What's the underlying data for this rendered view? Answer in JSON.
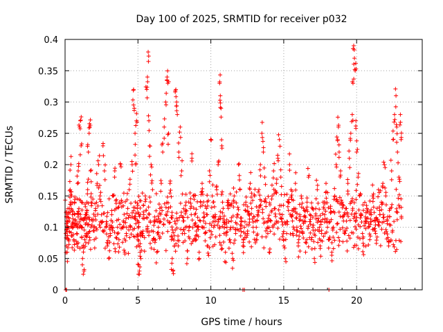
{
  "chart_data": {
    "type": "scatter",
    "title": "Day 100 of 2025, SRMTID for receiver p032",
    "xlabel": "GPS time / hours",
    "ylabel": "SRMTID / TECUs",
    "xlim": [
      0,
      24.5
    ],
    "ylim": [
      0,
      0.4
    ],
    "xticks": [
      0,
      5,
      10,
      15,
      20
    ],
    "yticks": [
      0,
      0.05,
      0.1,
      0.15,
      0.2,
      0.25,
      0.3,
      0.35,
      0.4
    ],
    "ytick_labels": [
      "0",
      "0.05",
      "0.1",
      "0.15",
      "0.2",
      "0.25",
      "0.3",
      "0.35",
      "0.4"
    ],
    "xtick_labels": [
      "0",
      "5",
      "10",
      "15",
      "20"
    ],
    "grid": true,
    "marker": "+",
    "color": "#ff0000",
    "series": [
      {
        "name": "SRMTID",
        "points": [
          [
            0.05,
            0.09
          ],
          [
            0.1,
            0.07
          ],
          [
            0.12,
            0.11
          ],
          [
            0.15,
            0.06
          ],
          [
            0.2,
            0.1
          ],
          [
            0.25,
            0.08
          ],
          [
            0.3,
            0.13
          ],
          [
            0.35,
            0.16
          ],
          [
            0.4,
            0.2
          ],
          [
            0.45,
            0.15
          ],
          [
            0.5,
            0.12
          ],
          [
            0.55,
            0.1
          ],
          [
            0.6,
            0.08
          ],
          [
            0.65,
            0.14
          ],
          [
            0.7,
            0.11
          ],
          [
            0.8,
            0.09
          ],
          [
            0.85,
            0.17
          ],
          [
            0.9,
            0.19
          ],
          [
            0.95,
            0.13
          ],
          [
            1.0,
            0.26
          ],
          [
            1.05,
            0.27
          ],
          [
            1.1,
            0.23
          ],
          [
            1.15,
            0.1
          ],
          [
            1.2,
            0.05
          ],
          [
            1.3,
            0.03
          ],
          [
            1.35,
            0.08
          ],
          [
            1.4,
            0.12
          ],
          [
            1.45,
            0.09
          ],
          [
            1.5,
            0.14
          ],
          [
            1.55,
            0.16
          ],
          [
            1.6,
            0.22
          ],
          [
            1.65,
            0.25
          ],
          [
            1.7,
            0.26
          ],
          [
            1.75,
            0.19
          ],
          [
            1.8,
            0.14
          ],
          [
            1.9,
            0.11
          ],
          [
            2.0,
            0.08
          ],
          [
            2.1,
            0.13
          ],
          [
            2.2,
            0.17
          ],
          [
            2.3,
            0.2
          ],
          [
            2.4,
            0.15
          ],
          [
            2.5,
            0.12
          ],
          [
            2.6,
            0.23
          ],
          [
            2.7,
            0.19
          ],
          [
            2.8,
            0.1
          ],
          [
            2.9,
            0.07
          ],
          [
            3.0,
            0.05
          ],
          [
            3.1,
            0.09
          ],
          [
            3.2,
            0.12
          ],
          [
            3.3,
            0.15
          ],
          [
            3.4,
            0.18
          ],
          [
            3.5,
            0.13
          ],
          [
            3.6,
            0.1
          ],
          [
            3.7,
            0.08
          ],
          [
            3.8,
            0.2
          ],
          [
            3.9,
            0.14
          ],
          [
            4.0,
            0.11
          ],
          [
            4.1,
            0.06
          ],
          [
            4.2,
            0.09
          ],
          [
            4.3,
            0.13
          ],
          [
            4.4,
            0.16
          ],
          [
            4.5,
            0.1
          ],
          [
            4.6,
            0.2
          ],
          [
            4.7,
            0.32
          ],
          [
            4.75,
            0.29
          ],
          [
            4.8,
            0.25
          ],
          [
            4.85,
            0.2
          ],
          [
            4.9,
            0.27
          ],
          [
            4.95,
            0.13
          ],
          [
            5.0,
            0.08
          ],
          [
            5.05,
            0.04
          ],
          [
            5.1,
            0.03
          ],
          [
            5.15,
            0.06
          ],
          [
            5.2,
            0.05
          ],
          [
            5.3,
            0.09
          ],
          [
            5.4,
            0.12
          ],
          [
            5.5,
            0.15
          ],
          [
            5.6,
            0.32
          ],
          [
            5.65,
            0.34
          ],
          [
            5.7,
            0.38
          ],
          [
            5.75,
            0.27
          ],
          [
            5.8,
            0.23
          ],
          [
            5.9,
            0.2
          ],
          [
            6.0,
            0.16
          ],
          [
            6.1,
            0.11
          ],
          [
            6.2,
            0.08
          ],
          [
            6.3,
            0.06
          ],
          [
            6.4,
            0.1
          ],
          [
            6.5,
            0.13
          ],
          [
            6.6,
            0.17
          ],
          [
            6.7,
            0.22
          ],
          [
            6.8,
            0.26
          ],
          [
            6.9,
            0.3
          ],
          [
            7.0,
            0.34
          ],
          [
            7.05,
            0.33
          ],
          [
            7.1,
            0.25
          ],
          [
            7.2,
            0.17
          ],
          [
            7.3,
            0.08
          ],
          [
            7.35,
            0.05
          ],
          [
            7.4,
            0.03
          ],
          [
            7.5,
            0.07
          ],
          [
            7.6,
            0.32
          ],
          [
            7.65,
            0.3
          ],
          [
            7.7,
            0.28
          ],
          [
            7.8,
            0.22
          ],
          [
            7.9,
            0.26
          ],
          [
            8.0,
            0.19
          ],
          [
            8.1,
            0.11
          ],
          [
            8.2,
            0.09
          ],
          [
            8.3,
            0.14
          ],
          [
            8.4,
            0.05
          ],
          [
            8.5,
            0.1
          ],
          [
            8.6,
            0.13
          ],
          [
            8.7,
            0.21
          ],
          [
            8.8,
            0.15
          ],
          [
            8.9,
            0.12
          ],
          [
            9.0,
            0.08
          ],
          [
            9.1,
            0.1
          ],
          [
            9.2,
            0.06
          ],
          [
            9.3,
            0.14
          ],
          [
            9.4,
            0.17
          ],
          [
            9.5,
            0.11
          ],
          [
            9.6,
            0.09
          ],
          [
            9.7,
            0.13
          ],
          [
            9.8,
            0.07
          ],
          [
            9.9,
            0.19
          ],
          [
            10.0,
            0.24
          ],
          [
            10.1,
            0.15
          ],
          [
            10.2,
            0.1
          ],
          [
            10.3,
            0.12
          ],
          [
            10.4,
            0.16
          ],
          [
            10.5,
            0.2
          ],
          [
            10.6,
            0.33
          ],
          [
            10.65,
            0.31
          ],
          [
            10.7,
            0.29
          ],
          [
            10.75,
            0.23
          ],
          [
            10.8,
            0.14
          ],
          [
            10.9,
            0.09
          ],
          [
            11.0,
            0.06
          ],
          [
            11.1,
            0.1
          ],
          [
            11.2,
            0.13
          ],
          [
            11.3,
            0.08
          ],
          [
            11.4,
            0.11
          ],
          [
            11.5,
            0.05
          ],
          [
            11.6,
            0.15
          ],
          [
            11.7,
            0.09
          ],
          [
            11.8,
            0.12
          ],
          [
            11.9,
            0.2
          ],
          [
            12.0,
            0.16
          ],
          [
            12.1,
            0.11
          ],
          [
            12.2,
            0.07
          ],
          [
            12.3,
            0.1
          ],
          [
            12.4,
            0.14
          ],
          [
            12.5,
            0.09
          ],
          [
            12.6,
            0.12
          ],
          [
            12.7,
            0.17
          ],
          [
            12.8,
            0.13
          ],
          [
            12.9,
            0.1
          ],
          [
            13.0,
            0.15
          ],
          [
            13.1,
            0.08
          ],
          [
            13.2,
            0.12
          ],
          [
            13.3,
            0.16
          ],
          [
            13.4,
            0.2
          ],
          [
            13.5,
            0.25
          ],
          [
            13.6,
            0.22
          ],
          [
            13.7,
            0.18
          ],
          [
            13.8,
            0.14
          ],
          [
            13.9,
            0.1
          ],
          [
            14.0,
            0.06
          ],
          [
            14.1,
            0.11
          ],
          [
            14.2,
            0.15
          ],
          [
            14.3,
            0.19
          ],
          [
            14.4,
            0.13
          ],
          [
            14.5,
            0.17
          ],
          [
            14.6,
            0.21
          ],
          [
            14.7,
            0.24
          ],
          [
            14.8,
            0.18
          ],
          [
            14.9,
            0.12
          ],
          [
            15.0,
            0.08
          ],
          [
            15.1,
            0.05
          ],
          [
            15.2,
            0.09
          ],
          [
            15.3,
            0.14
          ],
          [
            15.4,
            0.2
          ],
          [
            15.5,
            0.16
          ],
          [
            15.6,
            0.11
          ],
          [
            15.7,
            0.13
          ],
          [
            15.8,
            0.17
          ],
          [
            15.9,
            0.1
          ],
          [
            16.0,
            0.07
          ],
          [
            16.1,
            0.12
          ],
          [
            16.2,
            0.15
          ],
          [
            16.3,
            0.09
          ],
          [
            16.4,
            0.11
          ],
          [
            16.5,
            0.06
          ],
          [
            16.6,
            0.14
          ],
          [
            16.7,
            0.18
          ],
          [
            16.8,
            0.12
          ],
          [
            16.9,
            0.08
          ],
          [
            17.0,
            0.1
          ],
          [
            17.1,
            0.05
          ],
          [
            17.2,
            0.13
          ],
          [
            17.3,
            0.16
          ],
          [
            17.4,
            0.11
          ],
          [
            17.5,
            0.07
          ],
          [
            17.6,
            0.09
          ],
          [
            17.7,
            0.14
          ],
          [
            17.8,
            0.12
          ],
          [
            17.9,
            0.17
          ],
          [
            18.0,
            0.1
          ],
          [
            18.1,
            0.08
          ],
          [
            18.2,
            0.13
          ],
          [
            18.3,
            0.06
          ],
          [
            18.4,
            0.1
          ],
          [
            18.5,
            0.15
          ],
          [
            18.6,
            0.2
          ],
          [
            18.7,
            0.24
          ],
          [
            18.75,
            0.26
          ],
          [
            18.8,
            0.22
          ],
          [
            18.9,
            0.19
          ],
          [
            19.0,
            0.14
          ],
          [
            19.1,
            0.11
          ],
          [
            19.2,
            0.09
          ],
          [
            19.3,
            0.13
          ],
          [
            19.4,
            0.17
          ],
          [
            19.5,
            0.21
          ],
          [
            19.6,
            0.25
          ],
          [
            19.7,
            0.28
          ],
          [
            19.75,
            0.33
          ],
          [
            19.8,
            0.39
          ],
          [
            19.85,
            0.37
          ],
          [
            19.9,
            0.35
          ],
          [
            19.95,
            0.27
          ],
          [
            20.0,
            0.22
          ],
          [
            20.1,
            0.18
          ],
          [
            20.2,
            0.15
          ],
          [
            20.3,
            0.12
          ],
          [
            20.4,
            0.09
          ],
          [
            20.5,
            0.07
          ],
          [
            20.6,
            0.11
          ],
          [
            20.7,
            0.13
          ],
          [
            20.8,
            0.1
          ],
          [
            20.9,
            0.08
          ],
          [
            21.0,
            0.12
          ],
          [
            21.1,
            0.15
          ],
          [
            21.2,
            0.11
          ],
          [
            21.3,
            0.09
          ],
          [
            21.4,
            0.13
          ],
          [
            21.5,
            0.16
          ],
          [
            21.6,
            0.12
          ],
          [
            21.7,
            0.14
          ],
          [
            21.8,
            0.17
          ],
          [
            21.9,
            0.2
          ],
          [
            22.0,
            0.15
          ],
          [
            22.1,
            0.11
          ],
          [
            22.2,
            0.07
          ],
          [
            22.3,
            0.13
          ],
          [
            22.4,
            0.19
          ],
          [
            22.5,
            0.24
          ],
          [
            22.6,
            0.28
          ],
          [
            22.7,
            0.31
          ],
          [
            22.75,
            0.26
          ],
          [
            22.8,
            0.22
          ],
          [
            22.9,
            0.18
          ],
          [
            23.0,
            0.28
          ],
          [
            23.05,
            0.24
          ]
        ],
        "zero_points": [
          [
            0.05,
            0
          ],
          [
            0.1,
            0
          ],
          [
            12.2,
            0
          ],
          [
            12.3,
            0
          ],
          [
            18.1,
            0
          ]
        ]
      }
    ]
  }
}
